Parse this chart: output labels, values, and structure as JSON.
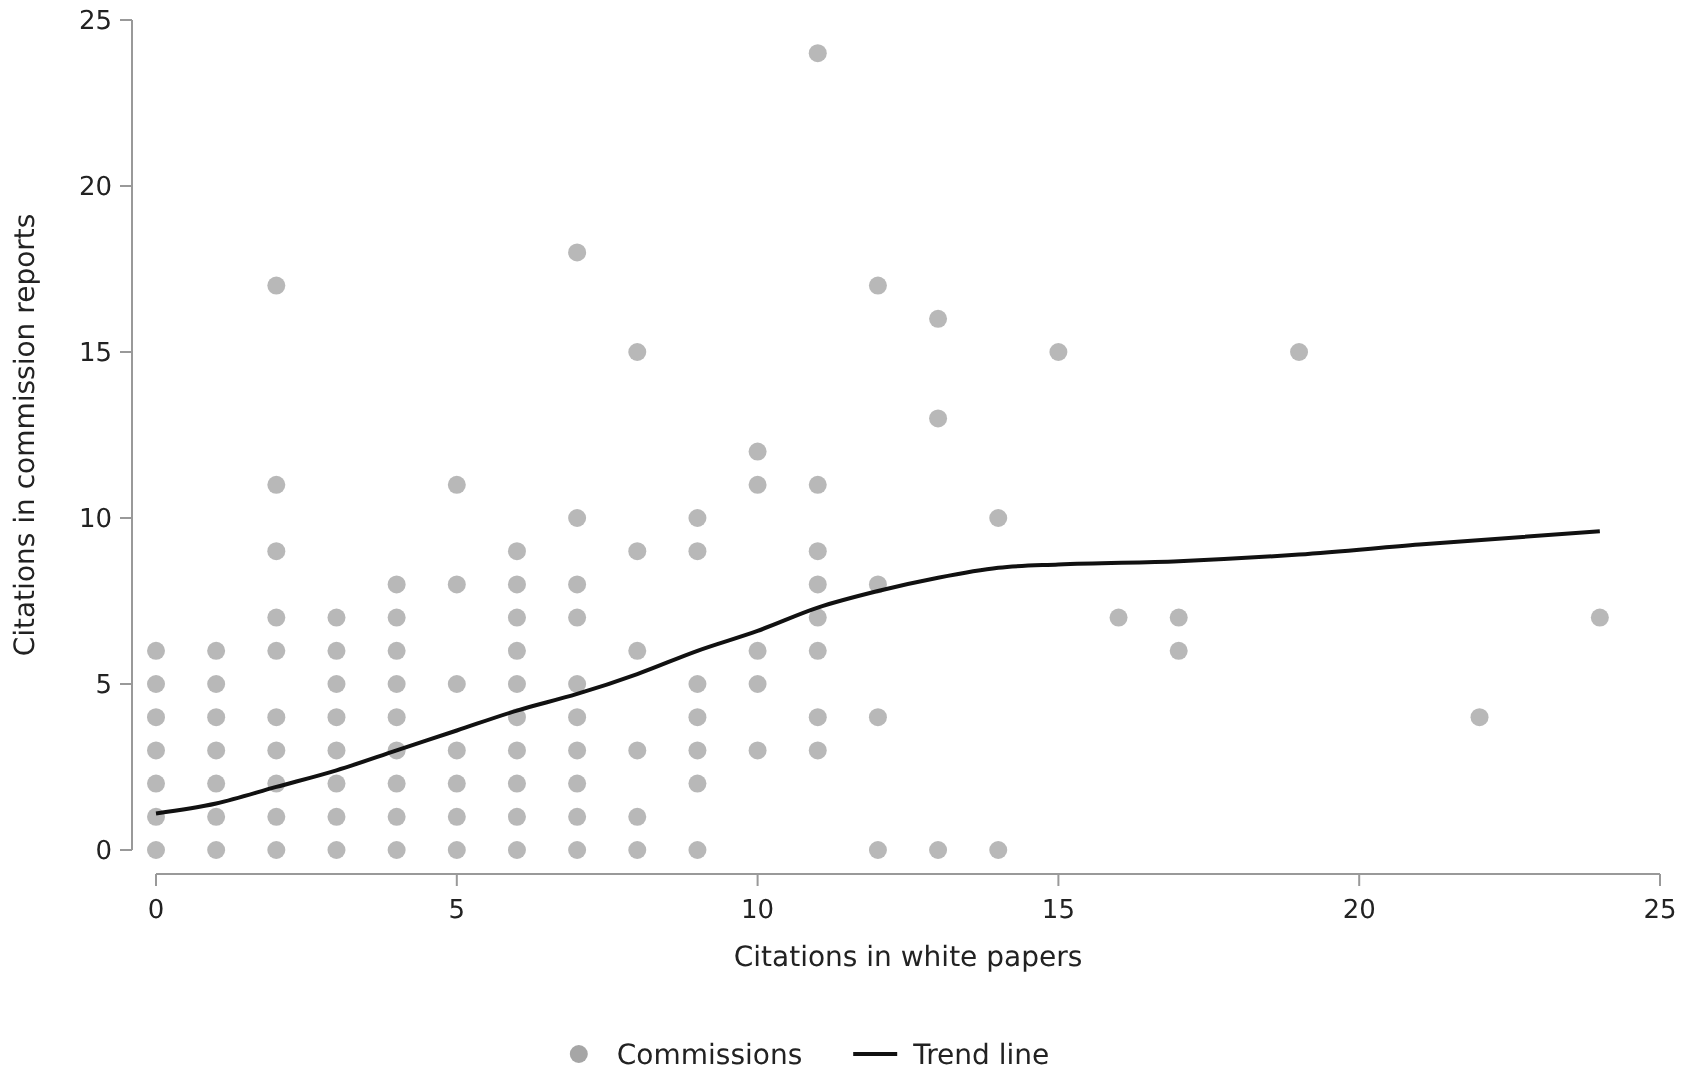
{
  "chart_data": {
    "type": "scatter",
    "xlabel": "Citations in white papers",
    "ylabel": "Citations in commission reports",
    "xlim": [
      0,
      25
    ],
    "ylim": [
      0,
      25
    ],
    "xticks": [
      0,
      5,
      10,
      15,
      20,
      25
    ],
    "yticks": [
      0,
      5,
      10,
      15,
      20,
      25
    ],
    "grid": false,
    "legend": "bottom",
    "marker": "circle",
    "series": [
      {
        "name": "Commissions",
        "color": "#a6a6a6",
        "x": [
          0,
          0,
          0,
          0,
          0,
          0,
          0,
          1,
          1,
          1,
          1,
          1,
          1,
          1,
          2,
          2,
          2,
          2,
          2,
          2,
          2,
          2,
          2,
          2,
          3,
          3,
          3,
          3,
          3,
          3,
          3,
          3,
          4,
          4,
          4,
          4,
          4,
          4,
          4,
          4,
          4,
          5,
          5,
          5,
          5,
          5,
          5,
          5,
          6,
          6,
          6,
          6,
          6,
          6,
          6,
          6,
          6,
          6,
          7,
          7,
          7,
          7,
          7,
          7,
          7,
          7,
          7,
          7,
          8,
          8,
          8,
          8,
          8,
          8,
          9,
          9,
          9,
          9,
          9,
          9,
          9,
          10,
          10,
          10,
          10,
          10,
          11,
          11,
          11,
          11,
          11,
          11,
          11,
          11,
          12,
          12,
          12,
          12,
          13,
          13,
          13,
          14,
          14,
          15,
          16,
          17,
          17,
          19,
          22,
          24
        ],
        "values": [
          0,
          1,
          2,
          3,
          4,
          5,
          6,
          0,
          1,
          2,
          3,
          4,
          5,
          6,
          0,
          1,
          2,
          3,
          4,
          6,
          7,
          9,
          11,
          17,
          0,
          1,
          2,
          3,
          4,
          5,
          6,
          7,
          0,
          1,
          2,
          3,
          4,
          5,
          6,
          7,
          8,
          0,
          1,
          2,
          3,
          5,
          8,
          11,
          0,
          1,
          2,
          3,
          4,
          5,
          6,
          7,
          8,
          9,
          0,
          1,
          2,
          3,
          4,
          5,
          7,
          8,
          10,
          18,
          0,
          1,
          3,
          6,
          9,
          15,
          0,
          2,
          3,
          4,
          5,
          9,
          10,
          3,
          5,
          6,
          11,
          12,
          3,
          4,
          6,
          7,
          8,
          9,
          11,
          24,
          0,
          4,
          8,
          17,
          0,
          13,
          16,
          0,
          10,
          15,
          7,
          6,
          7,
          15,
          4,
          7
        ]
      },
      {
        "name": "Trend line",
        "type": "line",
        "color": "#111111",
        "line_style": "solid",
        "marker": "none",
        "x": [
          0,
          1,
          2,
          3,
          4,
          5,
          6,
          7,
          8,
          9,
          10,
          11,
          12,
          13,
          14,
          15,
          17,
          19,
          21,
          24
        ],
        "values": [
          1.1,
          1.4,
          1.9,
          2.4,
          3.0,
          3.6,
          4.2,
          4.7,
          5.3,
          6.0,
          6.6,
          7.3,
          7.8,
          8.2,
          8.5,
          8.6,
          8.7,
          8.9,
          9.2,
          9.6
        ]
      }
    ]
  }
}
